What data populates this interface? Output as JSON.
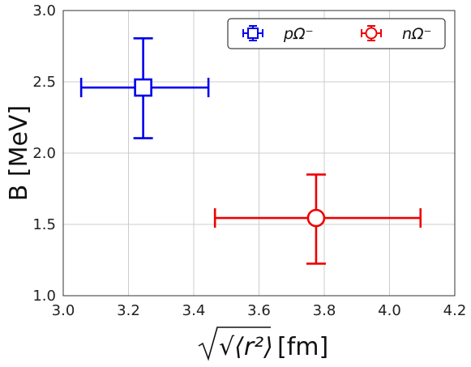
{
  "chart_data": {
    "type": "scatter",
    "title": "",
    "xlabel": "[fm]",
    "xlabel_math": "√⟨r²⟩",
    "ylabel": "B [MeV]",
    "xlim": [
      3.0,
      4.2
    ],
    "ylim": [
      1.0,
      3.0
    ],
    "x_ticks": [
      "3.0",
      "3.2",
      "3.4",
      "3.6",
      "3.8",
      "4.0",
      "4.2"
    ],
    "y_ticks": [
      "1.0",
      "1.5",
      "2.0",
      "2.5",
      "3.0"
    ],
    "grid": true,
    "legend_position": "top-right",
    "series": [
      {
        "name": "pΩ⁻",
        "color": "#0000ee",
        "marker": "square",
        "x": 3.245,
        "y": 2.46,
        "x_err": [
          3.055,
          3.445
        ],
        "y_err": [
          2.105,
          2.805
        ]
      },
      {
        "name": "nΩ⁻",
        "color": "#ee0000",
        "marker": "circle",
        "x": 3.775,
        "y": 1.545,
        "x_err": [
          3.465,
          4.095
        ],
        "y_err": [
          1.225,
          1.85
        ]
      }
    ]
  }
}
